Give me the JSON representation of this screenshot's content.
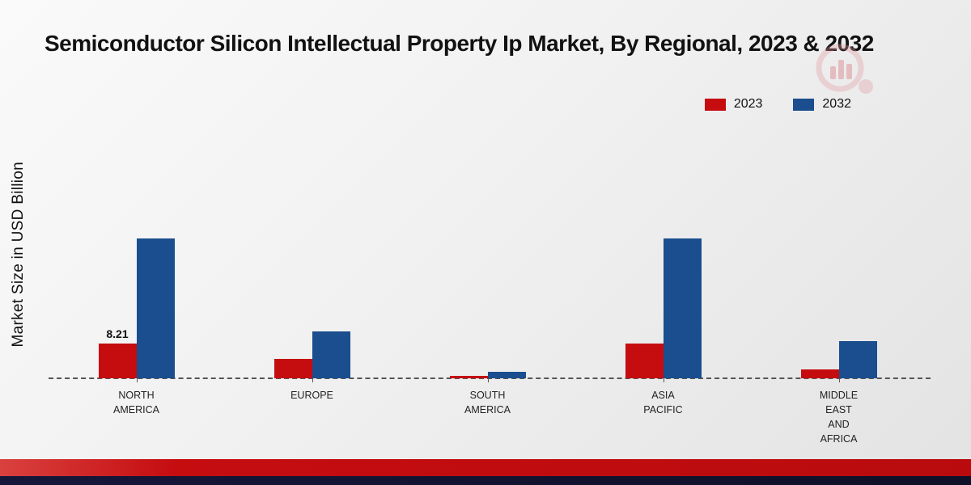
{
  "title": "Semiconductor Silicon Intellectual Property Ip Market, By Regional, 2023 & 2032",
  "legend": [
    {
      "label": "2023",
      "color": "#c50d10"
    },
    {
      "label": "2032",
      "color": "#1a4e8e"
    }
  ],
  "chart_data": {
    "type": "bar",
    "title": "Semiconductor Silicon Intellectual Property Ip Market, By Regional, 2023 & 2032",
    "ylabel": "Market Size in USD Billion",
    "xlabel": "",
    "ylim": [
      0,
      40
    ],
    "grid": false,
    "legend_position": "top-right",
    "categories": [
      "NORTH\nAMERICA",
      "EUROPE",
      "SOUTH\nAMERICA",
      "ASIA\nPACIFIC",
      "MIDDLE\nEAST\nAND\nAFRICA"
    ],
    "series": [
      {
        "name": "2023",
        "color": "#c50d10",
        "values": [
          8.21,
          4.6,
          0.55,
          8.2,
          2.1
        ]
      },
      {
        "name": "2032",
        "color": "#1a4e8e",
        "values": [
          33.0,
          11.0,
          1.6,
          33.0,
          8.7
        ]
      }
    ],
    "value_labels": [
      {
        "series": 0,
        "index": 0,
        "text": "8.21"
      }
    ]
  }
}
